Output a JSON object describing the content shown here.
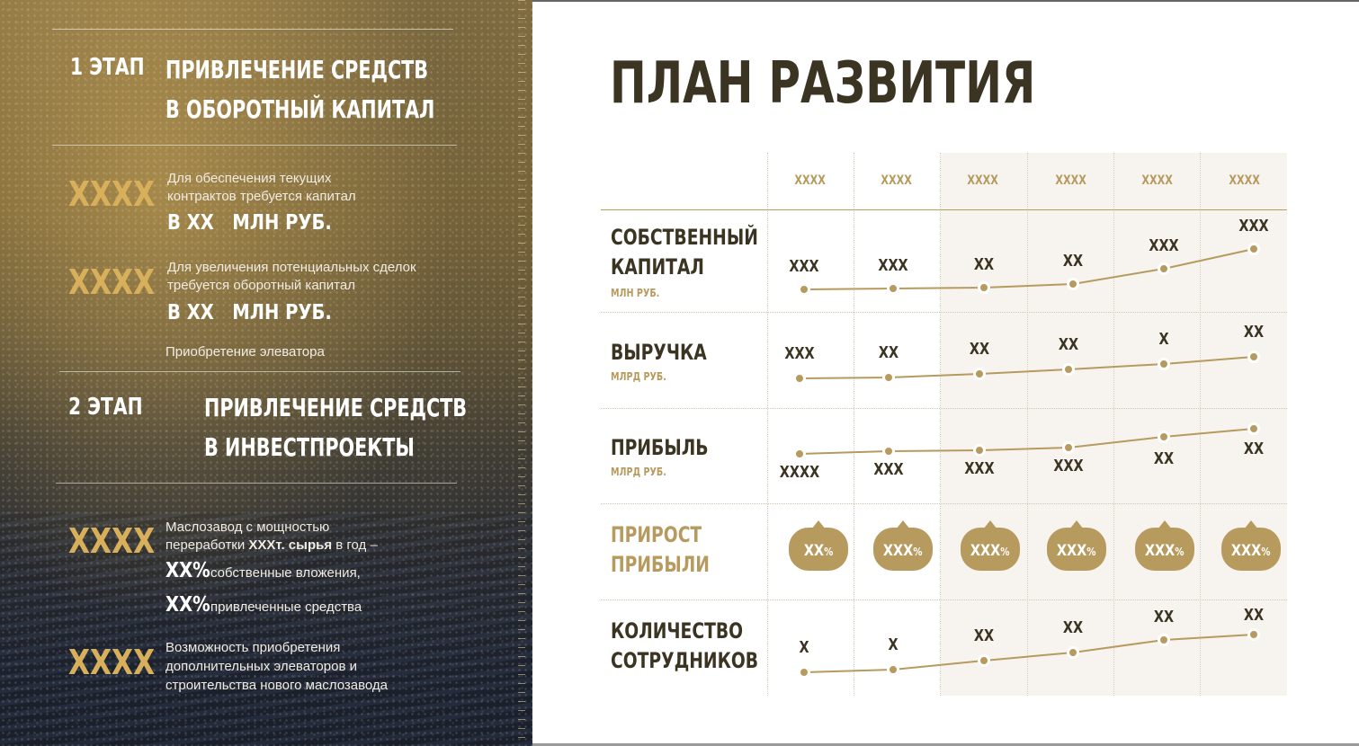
{
  "left": {
    "stage1": {
      "num": "1 ЭТАП",
      "title_line1": "ПРИВЛЕЧЕНИЕ СРЕДСТВ",
      "title_line2": "В ОБОРОТНЫЙ КАПИТАЛ"
    },
    "block1": {
      "big": "XXXX",
      "text_line1": "Для обеспечения текущих",
      "text_line2": "контрактов требуется капитал",
      "amount": "В XX   МЛН РУБ."
    },
    "block2": {
      "big": "XXXX",
      "text_line1": "Для увеличения потенциальных сделок",
      "text_line2": "требуется оборотный капитал",
      "amount": "В XX   МЛН РУБ."
    },
    "elevator_note": "Приобретение элеватора",
    "stage2": {
      "num": "2 ЭТАП",
      "title_line1": "ПРИВЛЕЧЕНИЕ СРЕДСТВ",
      "title_line2": "В ИНВЕСТПРОЕКТЫ"
    },
    "block3": {
      "big": "XXXX",
      "text_line1": "Маслозавод с мощностью",
      "text_line2_a": "переработки ",
      "text_line2_b": "XXXт. сырья",
      "text_line2_c": " в год –",
      "pct1": "XX%",
      "pct1_text": "собственные вложения,",
      "pct2": "XX%",
      "pct2_text": "привлеченные средства"
    },
    "block4": {
      "big": "XXXX",
      "text_line1": "Возможность приобретения",
      "text_line2": "дополнительных элеваторов и",
      "text_line3": "строительства нового маслозавода"
    }
  },
  "right": {
    "title": "ПЛАН РАЗВИТИЯ",
    "years": [
      "XXXX",
      "XXXX",
      "XXXX",
      "XXXX",
      "XXXX",
      "XXXX"
    ],
    "rows": [
      {
        "label_line1": "СОБСТВЕННЫЙ",
        "label_line2": "КАПИТАЛ",
        "unit": "МЛН РУБ.",
        "values": [
          "XXX",
          "XXX",
          "XX",
          "XX",
          "XXX",
          "XXX"
        ]
      },
      {
        "label_line1": "ВЫРУЧКА",
        "unit": "МЛРД РУБ.",
        "values": [
          "XXX",
          "XX",
          "XX",
          "XX",
          "X",
          "XX"
        ]
      },
      {
        "label_line1": "ПРИБЫЛЬ",
        "unit": "МЛРД РУБ.",
        "values": [
          "XXXX",
          "XXX",
          "XXX",
          "XXX",
          "XX",
          "XX"
        ]
      },
      {
        "label_line1": "ПРИРОСТ",
        "label_line2": "ПРИБЫЛИ",
        "badges": [
          [
            "XX",
            "%"
          ],
          [
            "XXX",
            "%"
          ],
          [
            "XXX",
            "%"
          ],
          [
            "XXX",
            "%"
          ],
          [
            "XXX",
            "%"
          ],
          [
            "XXX",
            "%"
          ]
        ]
      },
      {
        "label_line1": "КОЛИЧЕСТВО",
        "label_line2": "СОТРУДНИКОВ",
        "values": [
          "X",
          "X",
          "XX",
          "XX",
          "XX",
          "XX"
        ]
      }
    ],
    "colors": {
      "gold": "#b79a5e",
      "dark": "#3c3422",
      "shade": "#f7f4f0"
    }
  }
}
